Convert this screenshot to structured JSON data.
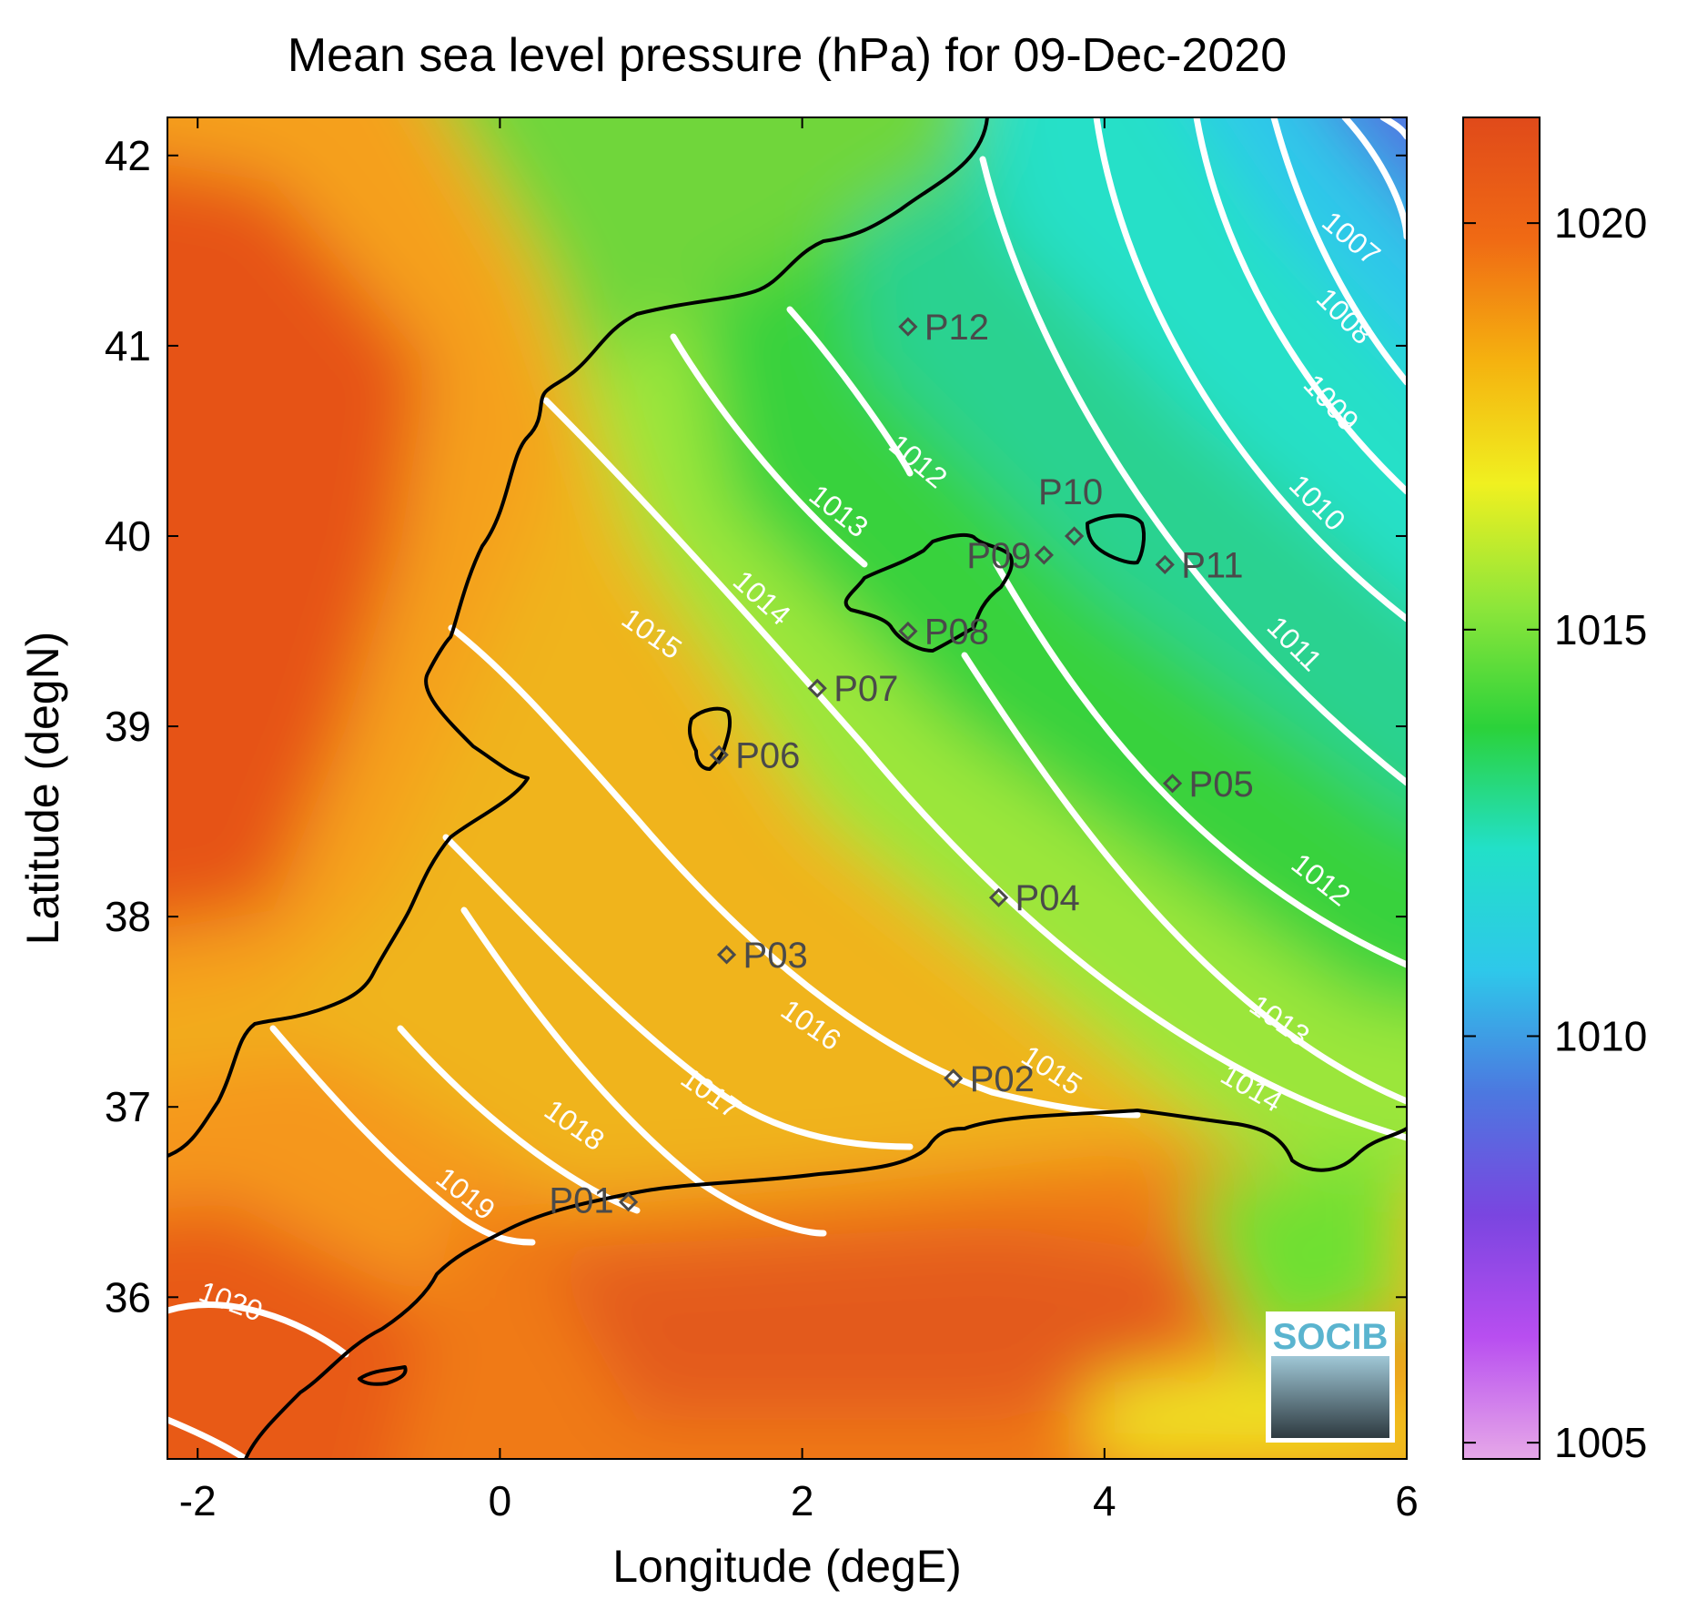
{
  "title": "Mean sea level pressure (hPa) for 09-Dec-2020",
  "xlabel": "Longitude (degE)",
  "ylabel": "Latitude (degN)",
  "logo_text": "SOCIB",
  "colors": {
    "contour": "#ffffff",
    "coast": "#000000",
    "station_marker": "#4a4a4a"
  },
  "chart_data": {
    "type": "heatmap",
    "variable": "Mean sea level pressure",
    "units": "hPa",
    "date": "09-Dec-2020",
    "xlim": [
      -2.2,
      6.0
    ],
    "ylim": [
      35.15,
      42.2
    ],
    "xticks": [
      -2,
      0,
      2,
      4,
      6
    ],
    "yticks": [
      36,
      37,
      38,
      39,
      40,
      41,
      42
    ],
    "colorbar": {
      "range": [
        1004.8,
        1021.3
      ],
      "ticks": [
        1005,
        1010,
        1015,
        1020
      ],
      "colormap": [
        "#e6a8e8",
        "#b84ef0",
        "#7a45e0",
        "#4c78e0",
        "#2ec8ea",
        "#22e0c8",
        "#2bd23a",
        "#8ee63a",
        "#f0f020",
        "#f5b20f",
        "#f06a14",
        "#e04a1a"
      ]
    },
    "contour_levels": [
      1007,
      1008,
      1009,
      1010,
      1011,
      1012,
      1013,
      1014,
      1015,
      1016,
      1017,
      1018,
      1019,
      1020
    ],
    "stations": [
      {
        "name": "P01",
        "lon": 0.85,
        "lat": 36.5
      },
      {
        "name": "P02",
        "lon": 3.0,
        "lat": 37.15
      },
      {
        "name": "P03",
        "lon": 1.5,
        "lat": 37.8
      },
      {
        "name": "P04",
        "lon": 3.3,
        "lat": 38.1
      },
      {
        "name": "P05",
        "lon": 4.45,
        "lat": 38.7
      },
      {
        "name": "P06",
        "lon": 1.45,
        "lat": 38.85
      },
      {
        "name": "P07",
        "lon": 2.1,
        "lat": 39.2
      },
      {
        "name": "P08",
        "lon": 2.7,
        "lat": 39.5
      },
      {
        "name": "P09",
        "lon": 3.6,
        "lat": 39.9
      },
      {
        "name": "P10",
        "lon": 3.8,
        "lat": 40.0
      },
      {
        "name": "P11",
        "lon": 4.4,
        "lat": 39.85
      },
      {
        "name": "P12",
        "lon": 2.7,
        "lat": 41.1
      }
    ]
  }
}
